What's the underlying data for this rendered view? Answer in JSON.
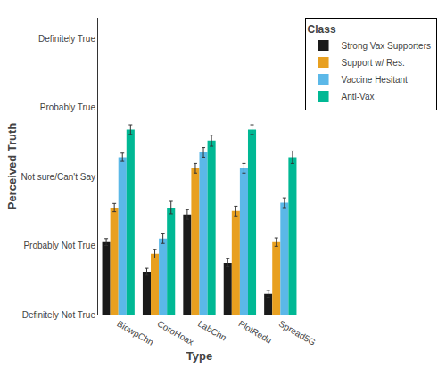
{
  "chart_data": {
    "type": "bar",
    "xlabel": "Type",
    "ylabel": "Perceived Truth",
    "legend_title": "Class",
    "legend": "right",
    "grid": false,
    "categories": [
      "BiowpChn",
      "CoroHoax",
      "LabChn",
      "PlotRedu",
      "Spread5G"
    ],
    "series": [
      {
        "name": "Strong Vax Supporters",
        "color": "#1a1a1a",
        "values": [
          2.05,
          1.62,
          2.45,
          1.75,
          1.3
        ],
        "errors": [
          0.05,
          0.05,
          0.07,
          0.06,
          0.05
        ]
      },
      {
        "name": "Support w/ Res.",
        "color": "#E8A020",
        "values": [
          2.55,
          1.88,
          3.12,
          2.5,
          2.05
        ],
        "errors": [
          0.06,
          0.06,
          0.07,
          0.07,
          0.06
        ]
      },
      {
        "name": "Vaccine Hesitant",
        "color": "#5BB8E8",
        "values": [
          3.28,
          2.1,
          3.35,
          3.12,
          2.62
        ],
        "errors": [
          0.06,
          0.07,
          0.07,
          0.07,
          0.07
        ]
      },
      {
        "name": "Anti-Vax",
        "color": "#00B894",
        "values": [
          3.68,
          2.55,
          3.52,
          3.68,
          3.28
        ],
        "errors": [
          0.07,
          0.09,
          0.08,
          0.07,
          0.09
        ]
      }
    ],
    "ylim": [
      1,
      5.3
    ],
    "yticks": [
      {
        "value": 1,
        "label": "Definitely Not True"
      },
      {
        "value": 2,
        "label": "Probably Not True"
      },
      {
        "value": 3,
        "label": "Not sure/Can't Say"
      },
      {
        "value": 4,
        "label": "Probably True"
      },
      {
        "value": 5,
        "label": "Definitely True"
      }
    ]
  }
}
